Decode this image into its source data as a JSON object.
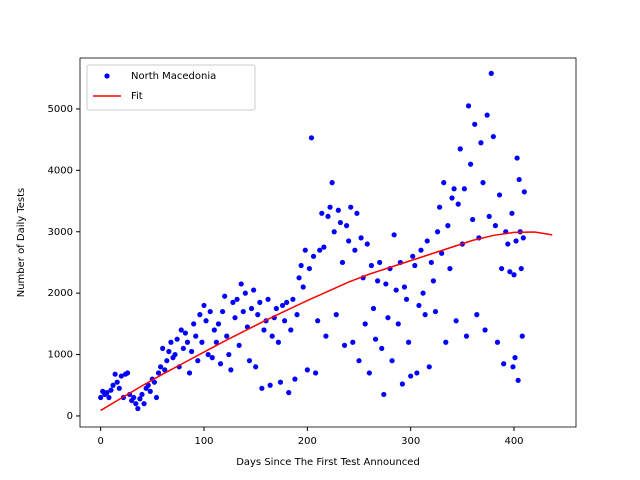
{
  "chart_data": {
    "type": "scatter",
    "xlabel": "Days Since The First Test Announced",
    "ylabel": "Number of Daily Tests",
    "xlim": [
      -20,
      460
    ],
    "ylim": [
      -180,
      5830
    ],
    "xticks": [
      0,
      100,
      200,
      300,
      400
    ],
    "yticks": [
      0,
      1000,
      2000,
      3000,
      4000,
      5000
    ],
    "grid": false,
    "legend": "upper left",
    "series": [
      {
        "name": "North Macedonia",
        "color": "#0000ff",
        "kind": "points",
        "x": [
          0,
          2,
          4,
          6,
          8,
          10,
          12,
          14,
          16,
          18,
          20,
          22,
          24,
          26,
          28,
          30,
          32,
          34,
          36,
          38,
          40,
          42,
          44,
          46,
          48,
          50,
          52,
          54,
          56,
          58,
          60,
          62,
          64,
          66,
          68,
          70,
          72,
          74,
          76,
          78,
          80,
          82,
          84,
          86,
          88,
          90,
          92,
          94,
          96,
          98,
          100,
          102,
          104,
          106,
          108,
          110,
          112,
          114,
          116,
          118,
          120,
          122,
          124,
          126,
          128,
          130,
          132,
          134,
          136,
          138,
          140,
          142,
          144,
          146,
          148,
          150,
          152,
          154,
          156,
          158,
          160,
          162,
          164,
          166,
          168,
          170,
          172,
          174,
          176,
          178,
          180,
          182,
          184,
          186,
          188,
          190,
          192,
          194,
          196,
          198,
          200,
          202,
          204,
          206,
          208,
          210,
          212,
          214,
          216,
          218,
          220,
          222,
          224,
          226,
          228,
          230,
          232,
          234,
          236,
          238,
          240,
          242,
          244,
          246,
          248,
          250,
          252,
          254,
          256,
          258,
          260,
          262,
          264,
          266,
          268,
          270,
          272,
          274,
          276,
          278,
          280,
          282,
          284,
          286,
          288,
          290,
          292,
          294,
          296,
          298,
          300,
          302,
          304,
          306,
          308,
          310,
          312,
          314,
          316,
          318,
          320,
          322,
          324,
          326,
          328,
          330,
          332,
          334,
          336,
          338,
          340,
          342,
          344,
          346,
          348,
          350,
          352,
          354,
          356,
          358,
          360,
          362,
          364,
          366,
          368,
          370,
          372,
          374,
          376,
          378,
          380,
          382,
          384,
          386,
          388,
          390,
          392,
          394,
          396,
          398,
          399,
          400,
          401,
          402,
          403,
          404,
          405,
          406,
          407,
          408,
          409,
          410
        ],
        "values": [
          300,
          400,
          350,
          380,
          300,
          420,
          500,
          680,
          550,
          450,
          650,
          300,
          680,
          700,
          350,
          250,
          300,
          200,
          120,
          280,
          350,
          200,
          450,
          500,
          400,
          600,
          550,
          300,
          700,
          800,
          1100,
          750,
          900,
          1050,
          1200,
          950,
          1000,
          1250,
          800,
          1400,
          1100,
          1350,
          1200,
          700,
          1050,
          1500,
          1300,
          900,
          1650,
          1200,
          1800,
          1550,
          1000,
          1700,
          950,
          1400,
          1200,
          1500,
          850,
          1700,
          1950,
          1300,
          1000,
          750,
          1850,
          1600,
          1900,
          1150,
          2150,
          1700,
          2000,
          1450,
          900,
          1750,
          2050,
          800,
          1650,
          1850,
          450,
          1400,
          1550,
          1900,
          500,
          1300,
          1600,
          1750,
          1200,
          550,
          1800,
          1550,
          1850,
          380,
          1400,
          1900,
          600,
          1650,
          2250,
          2450,
          2100,
          2700,
          750,
          2400,
          4530,
          2600,
          700,
          1550,
          2700,
          3300,
          2750,
          1300,
          3250,
          3400,
          3800,
          3000,
          1650,
          3350,
          3150,
          2500,
          1150,
          3100,
          2850,
          3400,
          1200,
          2700,
          3300,
          900,
          2900,
          2250,
          1500,
          2800,
          700,
          2450,
          1750,
          1250,
          2200,
          2500,
          1100,
          350,
          2150,
          1600,
          2400,
          900,
          2950,
          2050,
          1500,
          2500,
          520,
          2100,
          1900,
          1200,
          650,
          2600,
          2450,
          700,
          1800,
          2700,
          2000,
          1650,
          2850,
          800,
          2500,
          2200,
          1700,
          3000,
          3400,
          2650,
          3800,
          1200,
          3100,
          2400,
          3550,
          3700,
          1550,
          3450,
          4350,
          2800,
          3700,
          1300,
          5050,
          4100,
          3200,
          4750,
          1650,
          2900,
          4450,
          3800,
          1400,
          4900,
          3250,
          5580,
          4550,
          3100,
          1200,
          3600,
          2400,
          850,
          3000,
          2800,
          2350,
          3300,
          800,
          2300,
          950,
          2850,
          4200,
          580,
          3850,
          3000,
          2400,
          1300,
          2900,
          3650
        ]
      },
      {
        "name": "Fit",
        "color": "#ff0000",
        "kind": "line",
        "x": [
          0,
          20,
          40,
          60,
          80,
          100,
          120,
          140,
          160,
          180,
          200,
          220,
          240,
          260,
          280,
          300,
          320,
          340,
          360,
          380,
          400,
          420,
          437
        ],
        "values": [
          90,
          290,
          490,
          680,
          860,
          1040,
          1220,
          1390,
          1560,
          1720,
          1880,
          2030,
          2180,
          2310,
          2420,
          2530,
          2640,
          2750,
          2860,
          2940,
          2990,
          2995,
          2950
        ]
      }
    ]
  }
}
